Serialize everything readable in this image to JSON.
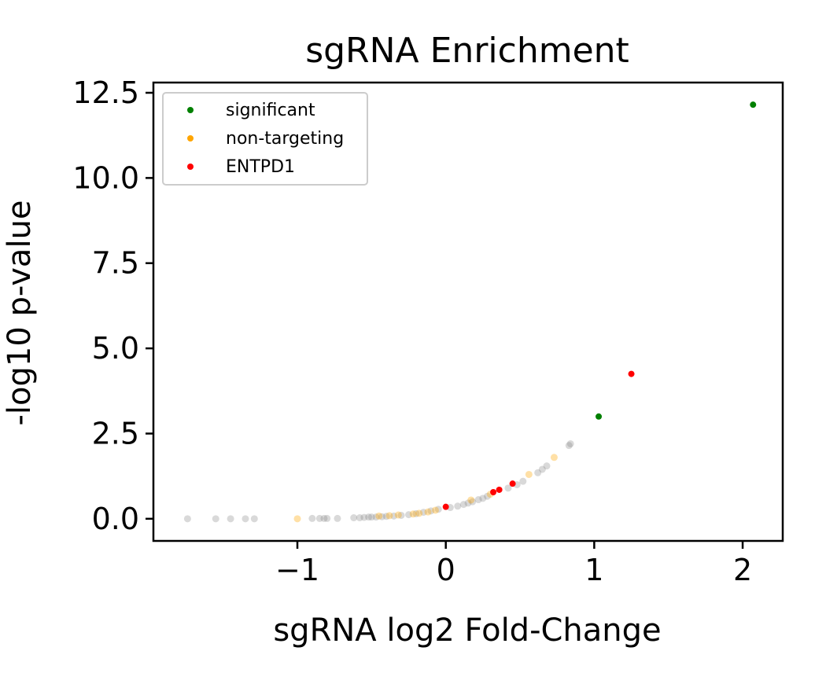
{
  "chart_data": {
    "type": "scatter",
    "title": "sgRNA Enrichment",
    "xlabel": "sgRNA log2 Fold-Change",
    "ylabel": "-log10 p-value",
    "xlim": [
      -1.97,
      2.27
    ],
    "ylim": [
      -0.65,
      12.8
    ],
    "x_ticks": [
      -1,
      0,
      1,
      2
    ],
    "x_tick_labels": [
      "−1",
      "0",
      "1",
      "2"
    ],
    "y_ticks": [
      0.0,
      2.5,
      5.0,
      7.5,
      10.0,
      12.5
    ],
    "y_tick_labels": [
      "0.0",
      "2.5",
      "5.0",
      "7.5",
      "10.0",
      "12.5"
    ],
    "grid": false,
    "legend": {
      "placement": "top-left",
      "entries": [
        {
          "label": "significant",
          "color": "#008000"
        },
        {
          "label": "non-targeting",
          "color": "#ffa500"
        },
        {
          "label": "ENTPD1",
          "color": "#ff0000"
        }
      ]
    },
    "series": [
      {
        "role": "background",
        "color": "#808080",
        "points": [
          [
            -1.74,
            0.0
          ],
          [
            -1.55,
            0.0
          ],
          [
            -1.45,
            0.0
          ],
          [
            -1.35,
            0.0
          ],
          [
            -1.29,
            0.0
          ],
          [
            -0.9,
            0.01
          ],
          [
            -0.85,
            0.01
          ],
          [
            -0.82,
            0.01
          ],
          [
            -0.8,
            0.01
          ],
          [
            -0.73,
            0.01
          ],
          [
            -0.62,
            0.03
          ],
          [
            -0.58,
            0.03
          ],
          [
            -0.55,
            0.04
          ],
          [
            -0.52,
            0.05
          ],
          [
            -0.5,
            0.05
          ],
          [
            -0.47,
            0.05
          ],
          [
            -0.43,
            0.06
          ],
          [
            -0.4,
            0.07
          ],
          [
            -0.35,
            0.08
          ],
          [
            -0.3,
            0.1
          ],
          [
            -0.25,
            0.12
          ],
          [
            -0.2,
            0.15
          ],
          [
            -0.15,
            0.19
          ],
          [
            -0.1,
            0.23
          ],
          [
            -0.05,
            0.28
          ],
          [
            0.03,
            0.33
          ],
          [
            0.08,
            0.37
          ],
          [
            0.12,
            0.42
          ],
          [
            0.15,
            0.46
          ],
          [
            0.18,
            0.5
          ],
          [
            0.22,
            0.56
          ],
          [
            0.25,
            0.6
          ],
          [
            0.28,
            0.66
          ],
          [
            0.42,
            0.9
          ],
          [
            0.48,
            1.0
          ],
          [
            0.52,
            1.1
          ],
          [
            0.62,
            1.35
          ],
          [
            0.65,
            1.45
          ],
          [
            0.68,
            1.55
          ],
          [
            0.83,
            2.15
          ],
          [
            0.84,
            2.2
          ]
        ]
      },
      {
        "role": "non-targeting",
        "color": "#ffa500",
        "points": [
          [
            -1.0,
            0.0
          ],
          [
            -0.45,
            0.08
          ],
          [
            -0.38,
            0.09
          ],
          [
            -0.32,
            0.11
          ],
          [
            -0.22,
            0.14
          ],
          [
            -0.18,
            0.16
          ],
          [
            -0.12,
            0.2
          ],
          [
            -0.07,
            0.25
          ],
          [
            0.17,
            0.55
          ],
          [
            0.3,
            0.72
          ],
          [
            0.56,
            1.3
          ],
          [
            0.73,
            1.8
          ]
        ]
      },
      {
        "role": "ENTPD1",
        "color": "#ff0000",
        "points": [
          [
            0.0,
            0.35
          ],
          [
            0.32,
            0.78
          ],
          [
            0.36,
            0.85
          ],
          [
            0.45,
            1.03
          ],
          [
            1.25,
            4.25
          ]
        ]
      },
      {
        "role": "significant",
        "color": "#008000",
        "points": [
          [
            1.03,
            3.0
          ],
          [
            2.07,
            12.15
          ]
        ]
      }
    ]
  }
}
